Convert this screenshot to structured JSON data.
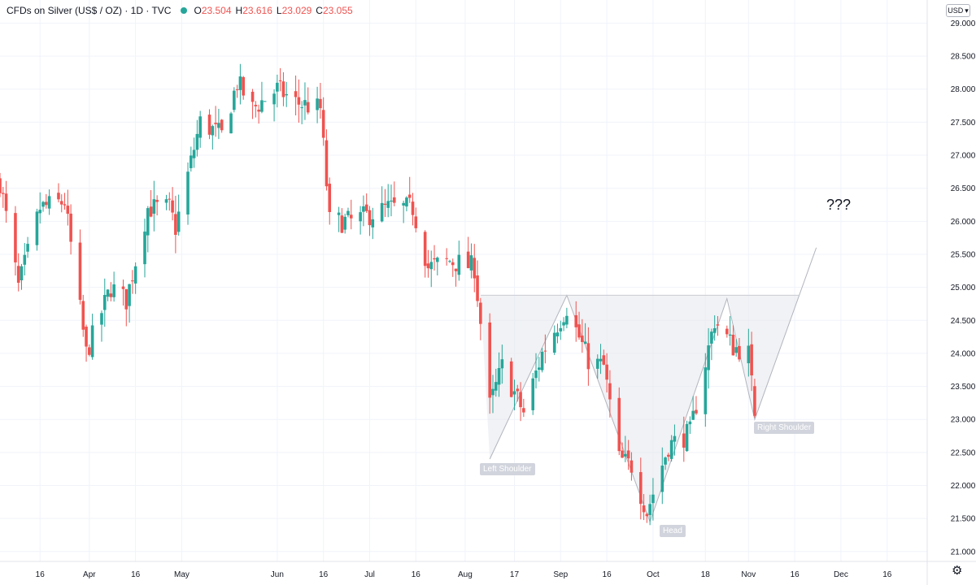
{
  "header": {
    "title": "CFDs on Silver (US$ / OZ) · 1D · TVC",
    "ohlc": [
      {
        "key": "O",
        "value": "23.504"
      },
      {
        "key": "H",
        "value": "23.616"
      },
      {
        "key": "L",
        "value": "23.029"
      },
      {
        "key": "C",
        "value": "23.055"
      }
    ]
  },
  "currency_button": "USD",
  "annotation_text": "???",
  "pattern_labels": {
    "left_shoulder": "Left Shoulder",
    "head": "Head",
    "right_shoulder": "Right Shoulder"
  },
  "colors": {
    "up": "#26a69a",
    "down": "#ef5350",
    "grid": "#f0f3fa",
    "axis_text": "#131722",
    "pattern_fill": "#e6e8ec",
    "label_bg": "#d1d4dc"
  },
  "chart_data": {
    "type": "candlestick",
    "title": "CFDs on Silver (US$ / OZ)",
    "interval": "1D",
    "source": "TVC",
    "y_ticks": [
      21.0,
      21.5,
      22.0,
      22.5,
      23.0,
      23.5,
      24.0,
      24.5,
      25.0,
      25.5,
      26.0,
      26.5,
      27.0,
      27.5,
      28.0,
      28.5,
      29.0
    ],
    "y_tick_labels": [
      "21.000",
      "21.500",
      "22.000",
      "22.500",
      "23.000",
      "23.500",
      "24.000",
      "24.500",
      "25.000",
      "25.500",
      "26.000",
      "26.500",
      "27.000",
      "27.500",
      "28.000",
      "28.500",
      "29.000"
    ],
    "ylim": [
      20.85,
      29.35
    ],
    "x_range": [
      "2021-03-03",
      "2021-12-29"
    ],
    "x_ticks": [
      {
        "label": "16",
        "date": "2021-03-16"
      },
      {
        "label": "Apr",
        "date": "2021-04-01"
      },
      {
        "label": "16",
        "date": "2021-04-16"
      },
      {
        "label": "May",
        "date": "2021-05-01"
      },
      {
        "label": "Jun",
        "date": "2021-06-01"
      },
      {
        "label": "16",
        "date": "2021-06-16"
      },
      {
        "label": "Jul",
        "date": "2021-07-01"
      },
      {
        "label": "16",
        "date": "2021-07-16"
      },
      {
        "label": "Aug",
        "date": "2021-08-01"
      },
      {
        "label": "17",
        "date": "2021-08-17"
      },
      {
        "label": "Sep",
        "date": "2021-09-01"
      },
      {
        "label": "16",
        "date": "2021-09-16"
      },
      {
        "label": "Oct",
        "date": "2021-10-01"
      },
      {
        "label": "18",
        "date": "2021-10-18"
      },
      {
        "label": "Nov",
        "date": "2021-11-01"
      },
      {
        "label": "16",
        "date": "2021-11-16"
      },
      {
        "label": "Dec",
        "date": "2021-12-01"
      },
      {
        "label": "16",
        "date": "2021-12-16"
      }
    ],
    "waypoints": [
      {
        "date": "2021-03-03",
        "price": 26.6
      },
      {
        "date": "2021-03-09",
        "price": 25.0
      },
      {
        "date": "2021-03-16",
        "price": 26.2
      },
      {
        "date": "2021-03-24",
        "price": 26.3
      },
      {
        "date": "2021-03-31",
        "price": 24.0
      },
      {
        "date": "2021-04-08",
        "price": 25.0
      },
      {
        "date": "2021-04-13",
        "price": 24.8
      },
      {
        "date": "2021-04-20",
        "price": 26.2
      },
      {
        "date": "2021-04-27",
        "price": 26.2
      },
      {
        "date": "2021-04-29",
        "price": 25.9
      },
      {
        "date": "2021-05-07",
        "price": 27.5
      },
      {
        "date": "2021-05-14",
        "price": 27.3
      },
      {
        "date": "2021-05-19",
        "price": 28.1
      },
      {
        "date": "2021-05-24",
        "price": 27.7
      },
      {
        "date": "2021-06-01",
        "price": 28.0
      },
      {
        "date": "2021-06-07",
        "price": 27.8
      },
      {
        "date": "2021-06-15",
        "price": 27.7
      },
      {
        "date": "2021-06-18",
        "price": 26.0
      },
      {
        "date": "2021-06-25",
        "price": 26.0
      },
      {
        "date": "2021-07-07",
        "price": 26.2
      },
      {
        "date": "2021-07-15",
        "price": 26.2
      },
      {
        "date": "2021-07-20",
        "price": 25.3
      },
      {
        "date": "2021-07-27",
        "price": 25.4
      },
      {
        "date": "2021-08-04",
        "price": 25.3
      },
      {
        "date": "2021-08-09",
        "price": 23.2
      },
      {
        "date": "2021-08-13",
        "price": 23.8
      },
      {
        "date": "2021-08-20",
        "price": 23.1
      },
      {
        "date": "2021-08-26",
        "price": 24.0
      },
      {
        "date": "2021-09-03",
        "price": 24.7
      },
      {
        "date": "2021-09-10",
        "price": 23.9
      },
      {
        "date": "2021-09-15",
        "price": 23.8
      },
      {
        "date": "2021-09-20",
        "price": 22.4
      },
      {
        "date": "2021-09-24",
        "price": 22.3
      },
      {
        "date": "2021-09-29",
        "price": 21.6
      },
      {
        "date": "2021-10-06",
        "price": 22.6
      },
      {
        "date": "2021-10-13",
        "price": 22.8
      },
      {
        "date": "2021-10-21",
        "price": 24.5
      },
      {
        "date": "2021-10-27",
        "price": 24.1
      },
      {
        "date": "2021-11-01",
        "price": 24.0
      },
      {
        "date": "2021-11-03",
        "price": 23.06
      }
    ],
    "last_candle": {
      "open": 23.504,
      "high": 23.616,
      "low": 23.029,
      "close": 23.055
    },
    "pattern": {
      "name": "inverse head and shoulders",
      "points": [
        {
          "date": "2021-08-06",
          "price": 24.9
        },
        {
          "date": "2021-08-09",
          "price": 22.4
        },
        {
          "date": "2021-09-03",
          "price": 24.88
        },
        {
          "date": "2021-09-30",
          "price": 21.45
        },
        {
          "date": "2021-10-25",
          "price": 24.83
        },
        {
          "date": "2021-11-03",
          "price": 23.0
        },
        {
          "date": "2021-11-23",
          "price": 25.6
        }
      ],
      "neckline": 24.88
    }
  }
}
